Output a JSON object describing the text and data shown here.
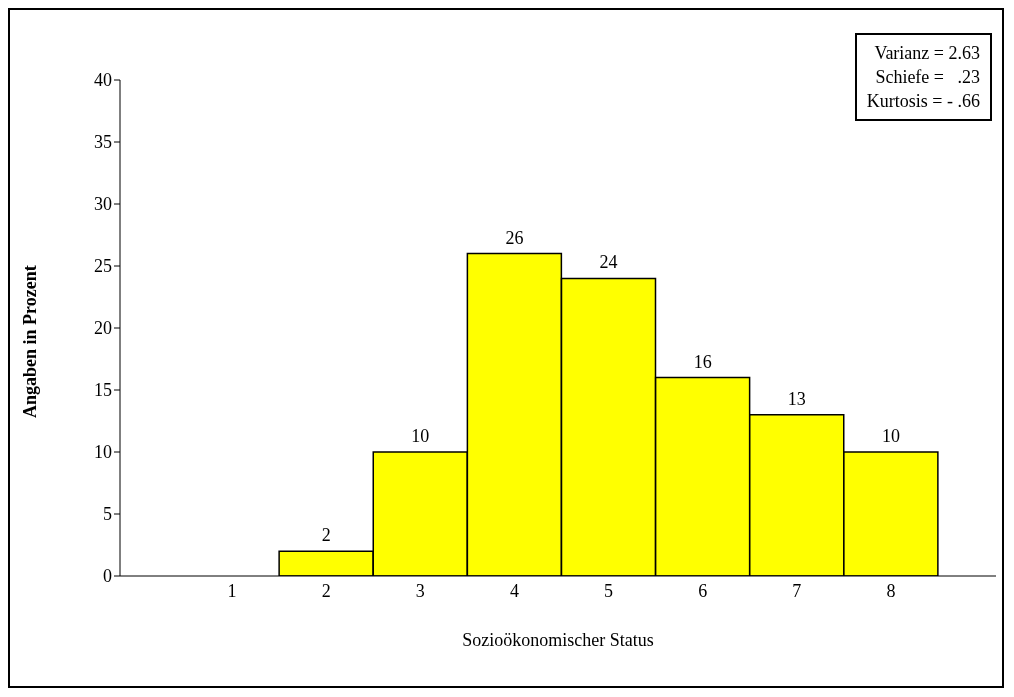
{
  "chart_data": {
    "type": "bar",
    "xlabel": "Sozioökonomischer Status",
    "ylabel": "Angaben in Prozent",
    "categories": [
      "1",
      "2",
      "3",
      "4",
      "5",
      "6",
      "7",
      "8"
    ],
    "values": [
      0,
      2,
      10,
      26,
      24,
      16,
      13,
      10
    ],
    "value_labels": [
      null,
      "2",
      "10",
      "26",
      "24",
      "16",
      "13",
      "10"
    ],
    "color": "#ffff00",
    "ylim": [
      0,
      40
    ],
    "yticks": [
      0,
      5,
      10,
      15,
      20,
      25,
      30,
      35,
      40
    ],
    "annotations": [
      "Varianz = 2.63",
      "Schiefe =   .23",
      "Kurtosis = - .66"
    ]
  }
}
